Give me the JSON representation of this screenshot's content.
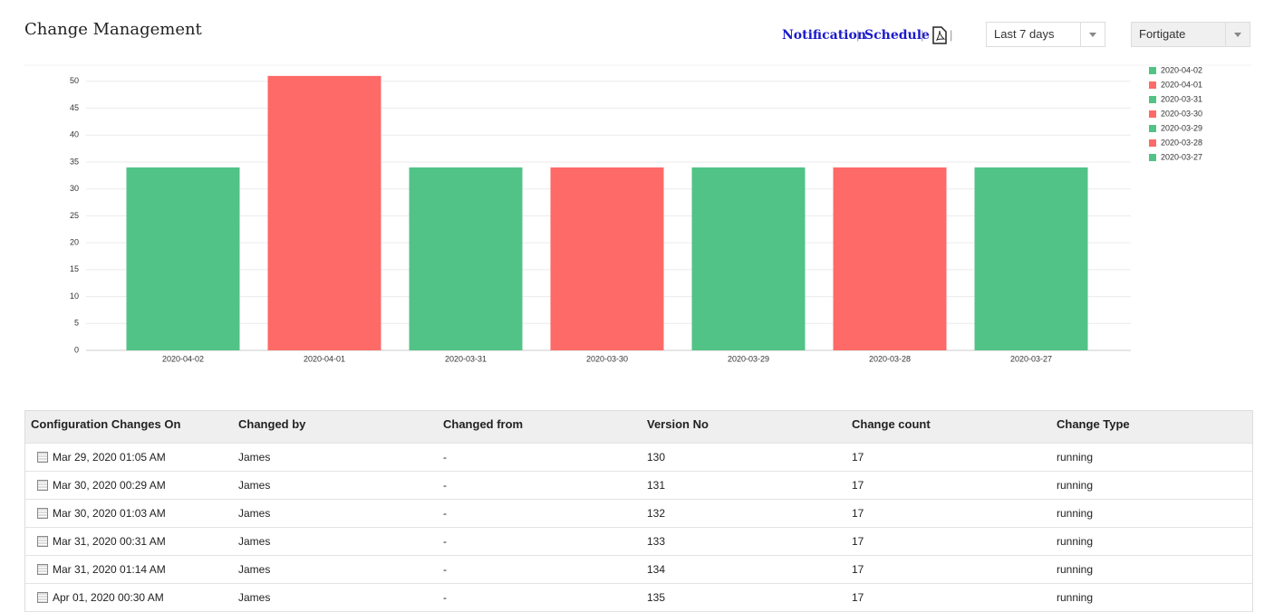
{
  "header": {
    "title": "Change Management",
    "links": [
      "Notification",
      "Schedule"
    ],
    "period": "Last 7 days",
    "device": "Fortigate"
  },
  "chart_data": {
    "type": "bar",
    "categories": [
      "2020-04-02",
      "2020-04-01",
      "2020-03-31",
      "2020-03-30",
      "2020-03-29",
      "2020-03-28",
      "2020-03-27"
    ],
    "values": [
      34,
      51,
      34,
      34,
      34,
      34,
      34
    ],
    "colors": [
      "#52c386",
      "#fd6a67",
      "#52c386",
      "#fd6a67",
      "#52c386",
      "#fd6a67",
      "#52c386"
    ],
    "ylim": [
      0,
      53
    ],
    "yticks": [
      0,
      5,
      10,
      15,
      20,
      25,
      30,
      35,
      40,
      45,
      50
    ],
    "grid": true,
    "legend": "right"
  },
  "table": {
    "columns": [
      "Configuration Changes On",
      "Changed by",
      "Changed from",
      "Version No",
      "Change count",
      "Change Type"
    ],
    "rows": [
      [
        "Mar 29, 2020 01:05 AM",
        "James",
        "-",
        "130",
        "17",
        "running"
      ],
      [
        "Mar 30, 2020 00:29 AM",
        "James",
        "-",
        "131",
        "17",
        "running"
      ],
      [
        "Mar 30, 2020 01:03 AM",
        "James",
        "-",
        "132",
        "17",
        "running"
      ],
      [
        "Mar 31, 2020 00:31 AM",
        "James",
        "-",
        "133",
        "17",
        "running"
      ],
      [
        "Mar 31, 2020 01:14 AM",
        "James",
        "-",
        "134",
        "17",
        "running"
      ],
      [
        "Apr 01, 2020 00:30 AM",
        "James",
        "-",
        "135",
        "17",
        "running"
      ]
    ]
  }
}
